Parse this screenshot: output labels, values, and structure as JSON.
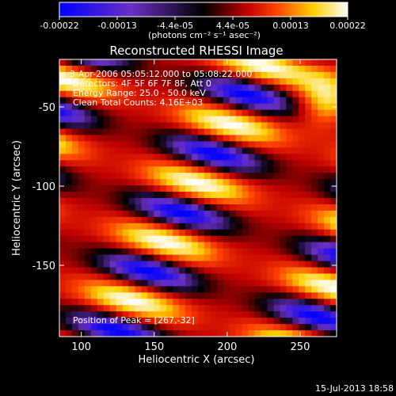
{
  "colorbar": {
    "ticks": [
      "-0.00022",
      "-0.00013",
      "-4.4e-05",
      "4.4e-05",
      "0.00013",
      "0.00022"
    ],
    "unit_label": "(photons cm⁻² s⁻¹ asec⁻²)"
  },
  "chart_data": {
    "type": "heatmap",
    "title": "Reconstructed RHESSI Image",
    "xlabel": "Heliocentric X (arcsec)",
    "ylabel": "Heliocentric Y (arcsec)",
    "xlim": [
      85,
      275
    ],
    "ylim": [
      -195,
      -20
    ],
    "x_ticks": [
      100,
      150,
      200,
      250
    ],
    "y_ticks": [
      -50,
      -100,
      -150
    ],
    "value_range": [
      -0.00022,
      0.00022
    ],
    "colormap": [
      "#0000ff",
      "#6a2fc4",
      "#000000",
      "#c00000",
      "#ff4000",
      "#ffd000",
      "#ffffff"
    ],
    "annotations": {
      "time": "3-Apr-2006 05:05:12.000 to 05:08:22.000",
      "detectors": "Detectors: 4F 5F 6F 7F 8F, Att 0",
      "energy": "Energy Range: 25.0 - 50.0 keV",
      "clean": "Clean     Total Counts: 4.16E+03",
      "peak": "Position of Peak = [267,-32]"
    },
    "peak_position": [
      267,
      -32
    ]
  },
  "footer": {
    "timestamp": "15-Jul-2013 18:58"
  }
}
